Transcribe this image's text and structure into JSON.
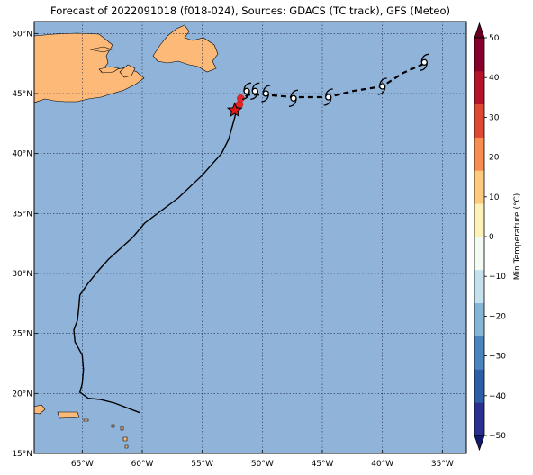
{
  "title": "Forecast of 2022091018 (f018-024), Sources: GDACS (TC track), GFS (Meteo)",
  "map": {
    "lon_range": [
      -69,
      -33
    ],
    "lat_range": [
      15,
      51
    ],
    "lon_ticks": [
      {
        "value": -65,
        "label": "65°W"
      },
      {
        "value": -60,
        "label": "60°W"
      },
      {
        "value": -55,
        "label": "55°W"
      },
      {
        "value": -50,
        "label": "50°W"
      },
      {
        "value": -45,
        "label": "45°W"
      },
      {
        "value": -40,
        "label": "40°W"
      },
      {
        "value": -35,
        "label": "35°W"
      }
    ],
    "lat_ticks": [
      {
        "value": 50,
        "label": "50°N"
      },
      {
        "value": 45,
        "label": "45°N"
      },
      {
        "value": 40,
        "label": "40°N"
      },
      {
        "value": 35,
        "label": "35°N"
      },
      {
        "value": 30,
        "label": "30°N"
      },
      {
        "value": 25,
        "label": "25°N"
      },
      {
        "value": 20,
        "label": "20°N"
      },
      {
        "value": 15,
        "label": "15°N"
      }
    ],
    "ocean_color": "#8fb3d9",
    "land_color": "#fdb978",
    "grid": true
  },
  "track_past": [
    [
      -60.2,
      18.4
    ],
    [
      -62.3,
      19.2
    ],
    [
      -63.5,
      19.5
    ],
    [
      -64.5,
      19.6
    ],
    [
      -65.2,
      20.1
    ],
    [
      -65.0,
      20.8
    ],
    [
      -64.9,
      22.0
    ],
    [
      -65.0,
      23.2
    ],
    [
      -65.6,
      24.3
    ],
    [
      -65.7,
      25.3
    ],
    [
      -65.4,
      26.1
    ],
    [
      -65.3,
      27.0
    ],
    [
      -65.2,
      28.2
    ],
    [
      -64.5,
      29.2
    ],
    [
      -63.6,
      30.3
    ],
    [
      -62.8,
      31.2
    ],
    [
      -60.8,
      33.0
    ],
    [
      -59.8,
      34.2
    ],
    [
      -57.0,
      36.3
    ],
    [
      -55.0,
      38.2
    ],
    [
      -53.4,
      40.0
    ],
    [
      -52.8,
      41.2
    ],
    [
      -52.3,
      43.0
    ],
    [
      -52.1,
      43.9
    ]
  ],
  "track_forecast": [
    [
      -52.0,
      44.3
    ],
    [
      -51.2,
      44.9
    ],
    [
      -50.5,
      44.9
    ],
    [
      -49.8,
      44.9
    ],
    [
      -47.4,
      44.7
    ],
    [
      -44.5,
      44.7
    ],
    [
      -42.5,
      45.2
    ],
    [
      -40.0,
      45.6
    ],
    [
      -38.3,
      46.7
    ],
    [
      -36.5,
      47.5
    ]
  ],
  "storm_symbols": [
    [
      -51.3,
      45.2
    ],
    [
      -50.6,
      45.2
    ],
    [
      -49.7,
      45.0
    ],
    [
      -47.4,
      44.6
    ],
    [
      -44.5,
      44.7
    ],
    [
      -40.0,
      45.6
    ],
    [
      -36.5,
      47.6
    ]
  ],
  "current_position": [
    -52.3,
    43.6
  ],
  "warm_dots": [
    [
      -51.9,
      44.1
    ],
    [
      -51.8,
      44.6
    ]
  ],
  "colorbar": {
    "label": "Min Temperature (°C)",
    "min": -50,
    "max": 50,
    "ticks": [
      {
        "value": 50,
        "label": "50"
      },
      {
        "value": 40,
        "label": "40"
      },
      {
        "value": 30,
        "label": "30"
      },
      {
        "value": 20,
        "label": "20"
      },
      {
        "value": 10,
        "label": "10"
      },
      {
        "value": 0,
        "label": "0"
      },
      {
        "value": -10,
        "label": "−10"
      },
      {
        "value": -20,
        "label": "−20"
      },
      {
        "value": -30,
        "label": "−30"
      },
      {
        "value": -40,
        "label": "−40"
      },
      {
        "value": -50,
        "label": "−50"
      }
    ],
    "colors": [
      "#2b2f8f",
      "#2e5ea6",
      "#4a86bd",
      "#85b6d6",
      "#c4e1ed",
      "#f3fbf4",
      "#fff2b8",
      "#fdcb7e",
      "#f88d52",
      "#de4933",
      "#b5132a",
      "#86002b"
    ],
    "extend_low_color": "#131a6e",
    "extend_high_color": "#6a001f"
  }
}
